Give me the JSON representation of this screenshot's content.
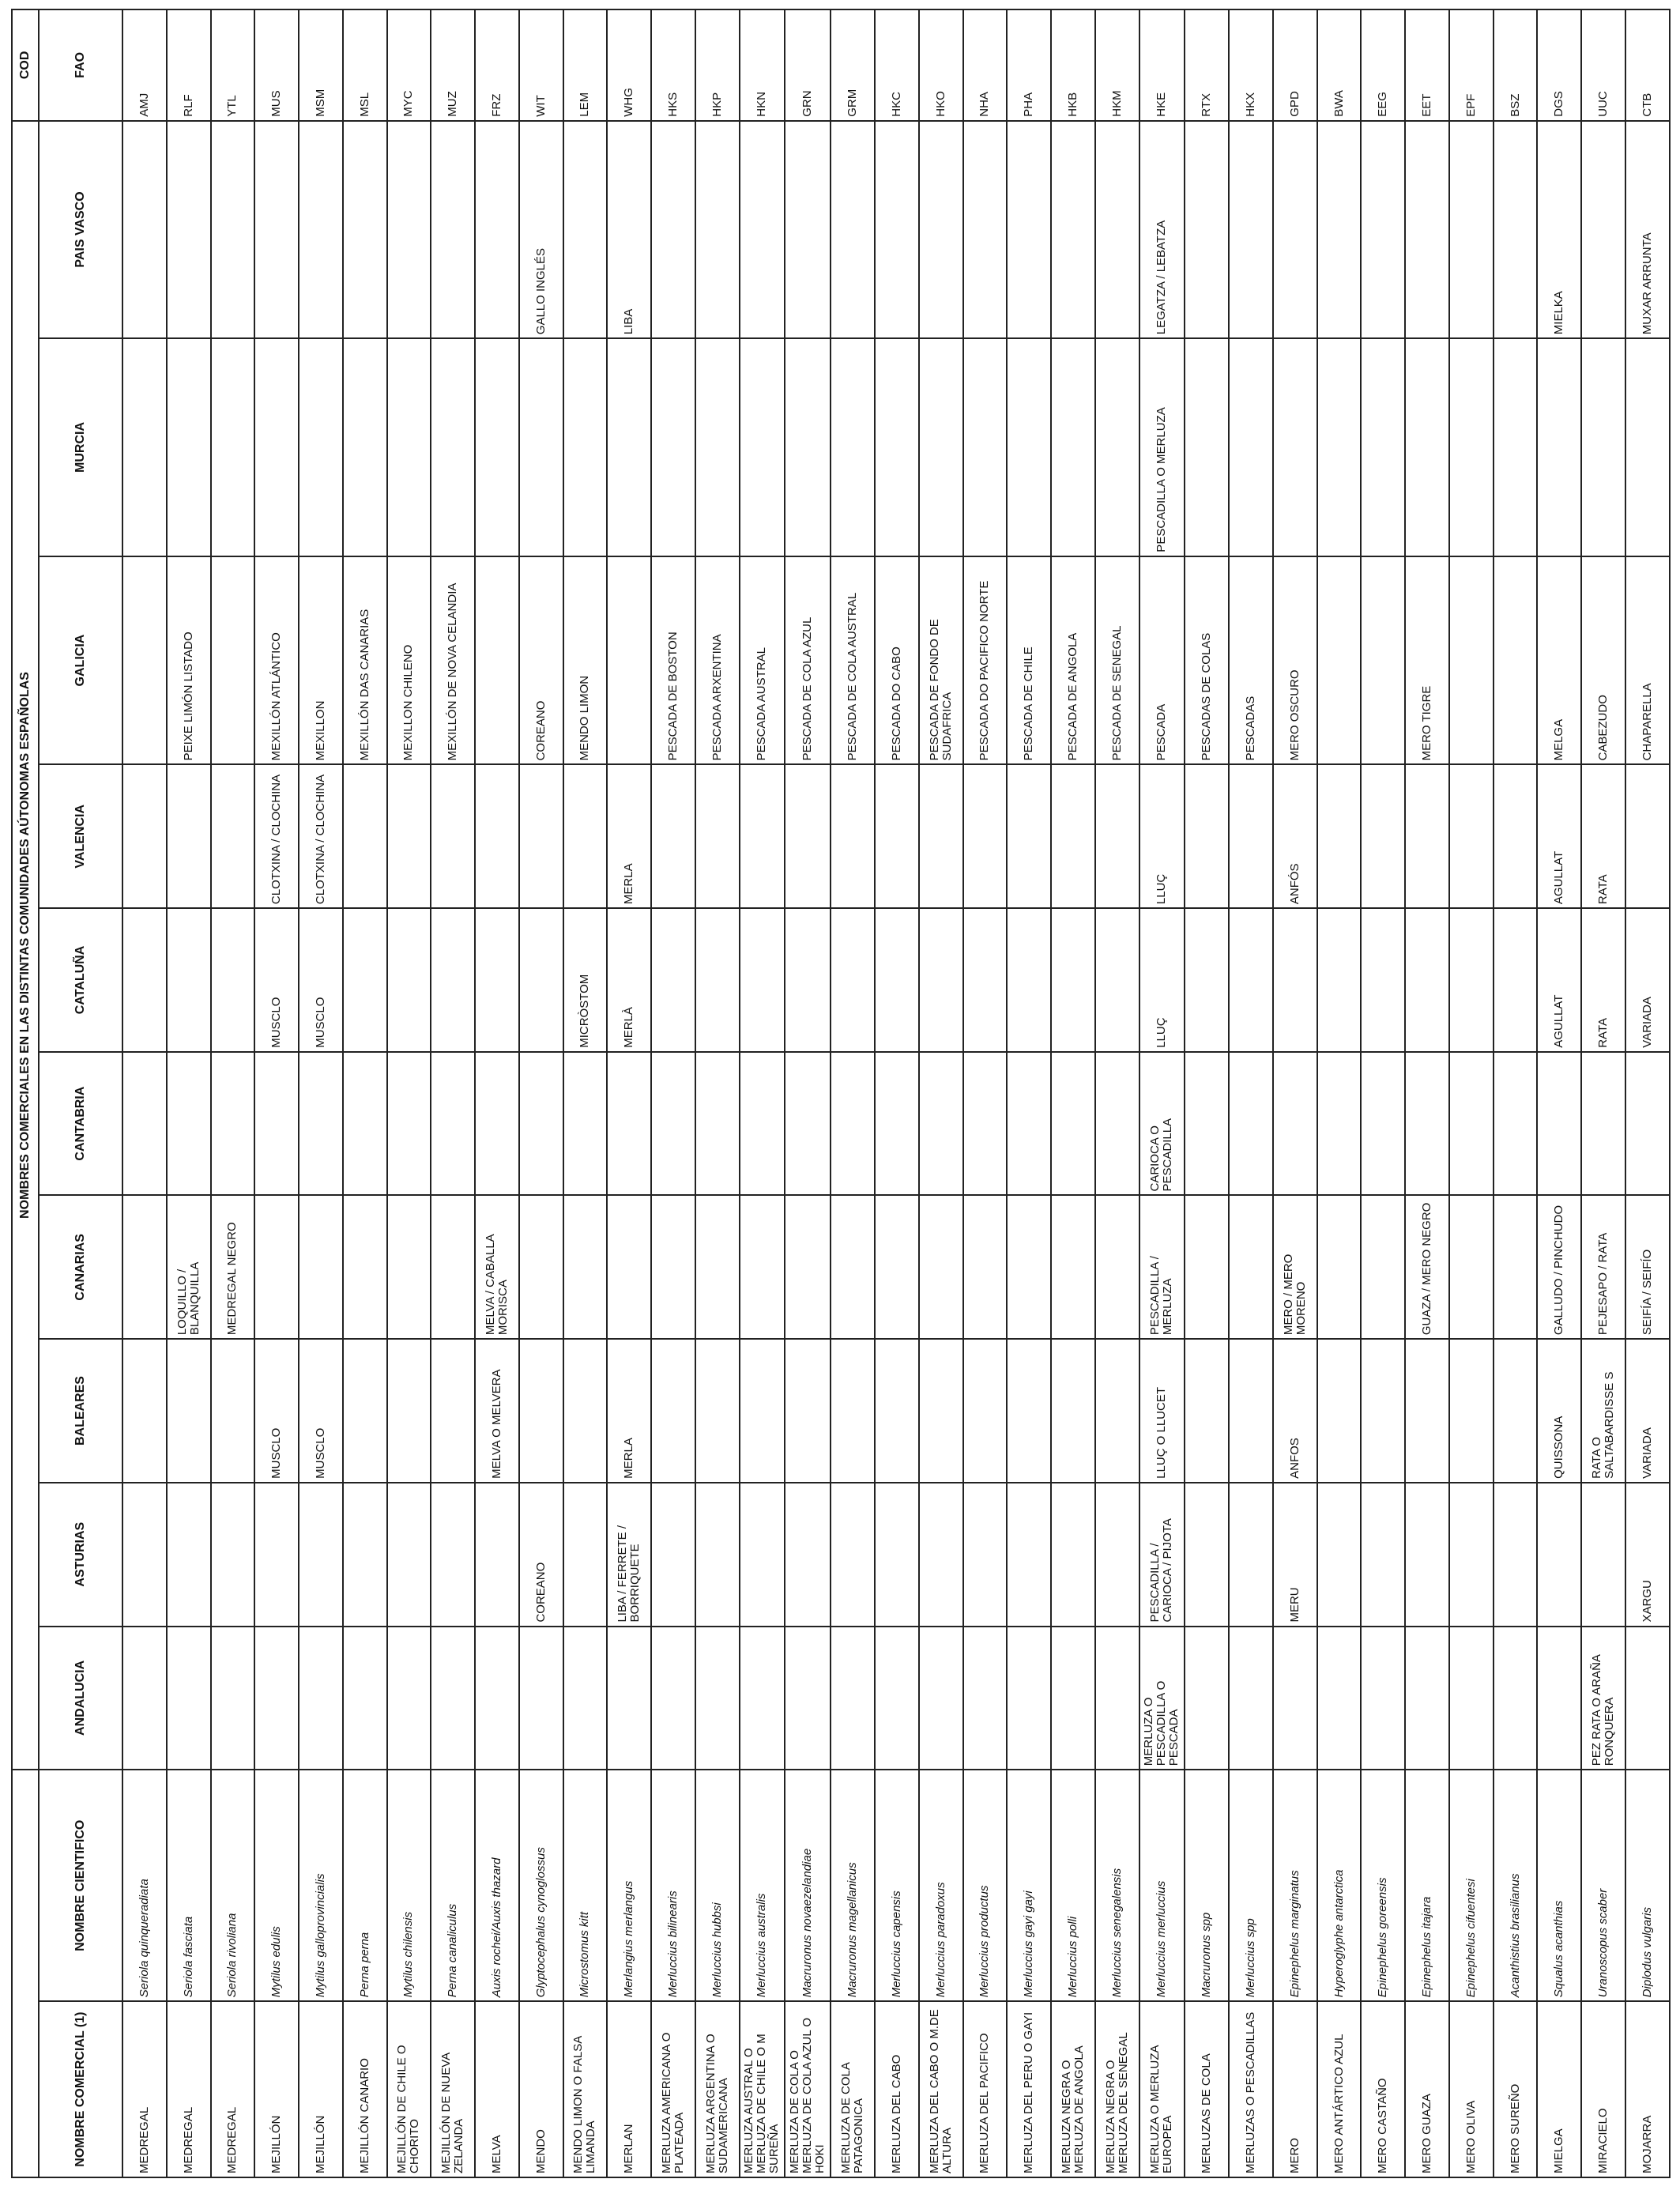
{
  "headers": {
    "cod": "COD",
    "nombres_group": "NOMBRES COMERCIALES EN LAS DISTINTAS COMUNIDADES AÚTONOMAS ESPAÑOLAS",
    "nombre_comercial": "NOMBRE COMERCIAL (1)",
    "nombre_cientifico": "NOMBRE CIENTIFICO",
    "regions": [
      "ANDALUCIA",
      "ASTURIAS",
      "BALEARES",
      "CANARIAS",
      "CANTABRIA",
      "CATALUÑA",
      "VALENCIA",
      "GALICIA",
      "MURCIA",
      "PAIS VASCO"
    ],
    "fao": "FAO"
  },
  "rows": [
    {
      "comercial": "MEDREGAL",
      "cientifico": "Seriola quinqueradiata",
      "regions": [
        "",
        "",
        "",
        "",
        "",
        "",
        "",
        "",
        "",
        ""
      ],
      "fao": "AMJ"
    },
    {
      "comercial": "MEDREGAL",
      "cientifico": "Seriola fasciata",
      "regions": [
        "",
        "",
        "",
        "LOQUILLO / BLANQUILLA",
        "",
        "",
        "",
        "PEIXE LIMÓN LISTADO",
        "",
        ""
      ],
      "fao": "RLF"
    },
    {
      "comercial": "MEDREGAL",
      "cientifico": "Seriola rivoliana",
      "regions": [
        "",
        "",
        "",
        "MEDREGAL NEGRO",
        "",
        "",
        "",
        "",
        "",
        ""
      ],
      "fao": "YTL"
    },
    {
      "comercial": "MEJILLÓN",
      "cientifico": "Mytilus edulis",
      "regions": [
        "",
        "",
        "MUSCLO",
        "",
        "",
        "MUSCLO",
        "CLOTXINA / CLOCHINA",
        "MEXILLÓN ATLÁNTICO",
        "",
        ""
      ],
      "fao": "MUS"
    },
    {
      "comercial": "MEJILLÓN",
      "cientifico": "Mytilus galloprovincialis",
      "regions": [
        "",
        "",
        "MUSCLO",
        "",
        "",
        "MUSCLO",
        "CLOTXINA / CLOCHINA",
        "MEXILLON",
        "",
        ""
      ],
      "fao": "MSM"
    },
    {
      "comercial": "MEJILLÓN CANARIO",
      "cientifico": "Perna perna",
      "regions": [
        "",
        "",
        "",
        "",
        "",
        "",
        "",
        "MEXILLÓN DAS CANARIAS",
        "",
        ""
      ],
      "fao": "MSL"
    },
    {
      "comercial": "MEJILLÓN DE CHILE O CHORITO",
      "cientifico": "Mytilus chilensis",
      "regions": [
        "",
        "",
        "",
        "",
        "",
        "",
        "",
        "MEXILLON CHILENO",
        "",
        ""
      ],
      "fao": "MYC"
    },
    {
      "comercial": "MEJILLÓN DE NUEVA ZELANDA",
      "cientifico": "Perna canaliculus",
      "regions": [
        "",
        "",
        "",
        "",
        "",
        "",
        "",
        "MEXILLÓN DE NOVA CELANDIA",
        "",
        ""
      ],
      "fao": "MUZ"
    },
    {
      "comercial": "MELVA",
      "cientifico": "Auxis rochei/Auxis thazard",
      "regions": [
        "",
        "",
        "MELVA O MELVERA",
        "MELVA / CABALLA MORISCA",
        "",
        "",
        "",
        "",
        "",
        ""
      ],
      "fao": "FRZ"
    },
    {
      "comercial": "MENDO",
      "cientifico": "Glyptocephalus cynoglossus",
      "regions": [
        "",
        "COREANO",
        "",
        "",
        "",
        "",
        "",
        "COREANO",
        "",
        "GALLO INGLÉS"
      ],
      "fao": "WIT"
    },
    {
      "comercial": "MENDO LIMON O FALSA LIMANDA",
      "cientifico": "Microstomus kitt",
      "regions": [
        "",
        "",
        "",
        "",
        "",
        "MICRÒSTOM",
        "",
        "MENDO LIMON",
        "",
        ""
      ],
      "fao": "LEM"
    },
    {
      "comercial": "MERLAN",
      "cientifico": "Merlangius merlangus",
      "regions": [
        "",
        "LIBA / FERRETE / BORRIQUETE",
        "MERLA",
        "",
        "",
        "MERLÀ",
        "MERLA",
        "",
        "",
        "LIBA"
      ],
      "fao": "WHG"
    },
    {
      "comercial": "MERLUZA AMERICANA O PLATEADA",
      "cientifico": "Merluccius bilinearis",
      "regions": [
        "",
        "",
        "",
        "",
        "",
        "",
        "",
        "PESCADA DE BOSTON",
        "",
        ""
      ],
      "fao": "HKS"
    },
    {
      "comercial": "MERLUZA ARGENTINA O SUDAMERICANA",
      "cientifico": "Merluccius hubbsi",
      "regions": [
        "",
        "",
        "",
        "",
        "",
        "",
        "",
        "PESCADA ARXENTINA",
        "",
        ""
      ],
      "fao": "HKP"
    },
    {
      "comercial": "MERLUZA AUSTRAL O MERLUZA DE CHILE O M SUREÑA",
      "cientifico": "Merluccius australis",
      "regions": [
        "",
        "",
        "",
        "",
        "",
        "",
        "",
        "PESCADA AUSTRAL",
        "",
        ""
      ],
      "fao": "HKN"
    },
    {
      "comercial": "MERLUZA DE COLA O MERLUZA DE COLA AZUL O HOKI",
      "cientifico": "Macruronus novaezelandiae",
      "regions": [
        "",
        "",
        "",
        "",
        "",
        "",
        "",
        "PESCADA DE COLA AZUL",
        "",
        ""
      ],
      "fao": "GRN"
    },
    {
      "comercial": "MERLUZA DE COLA PATAGONICA",
      "cientifico": "Macruronus magellanicus",
      "regions": [
        "",
        "",
        "",
        "",
        "",
        "",
        "",
        "PESCADA DE COLA AUSTRAL",
        "",
        ""
      ],
      "fao": "GRM"
    },
    {
      "comercial": "MERLUZA DEL CABO",
      "cientifico": "Merluccius capensis",
      "regions": [
        "",
        "",
        "",
        "",
        "",
        "",
        "",
        "PESCADA DO CABO",
        "",
        ""
      ],
      "fao": "HKC"
    },
    {
      "comercial": "MERLUZA DEL CABO O M.DE ALTURA",
      "cientifico": "Merluccius paradoxus",
      "regions": [
        "",
        "",
        "",
        "",
        "",
        "",
        "",
        "PESCADA DE FONDO DE SUDAFRICA",
        "",
        ""
      ],
      "fao": "HKO"
    },
    {
      "comercial": "MERLUZA DEL PACIFICO",
      "cientifico": "Merluccius productus",
      "regions": [
        "",
        "",
        "",
        "",
        "",
        "",
        "",
        "PESCADA DO PACIFICO NORTE",
        "",
        ""
      ],
      "fao": "NHA"
    },
    {
      "comercial": "MERLUZA DEL PERU O GAYI",
      "cientifico": "Merluccius gayi gayi",
      "regions": [
        "",
        "",
        "",
        "",
        "",
        "",
        "",
        "PESCADA DE CHILE",
        "",
        ""
      ],
      "fao": "PHA"
    },
    {
      "comercial": "MERLUZA NEGRA O MERLUZA DE ANGOLA",
      "cientifico": "Merluccius polli",
      "regions": [
        "",
        "",
        "",
        "",
        "",
        "",
        "",
        "PESCADA DE ANGOLA",
        "",
        ""
      ],
      "fao": "HKB"
    },
    {
      "comercial": "MERLUZA NEGRA O MERLUZA DEL SENEGAL",
      "cientifico": "Merluccius senegalensis",
      "regions": [
        "",
        "",
        "",
        "",
        "",
        "",
        "",
        "PESCADA DE SENEGAL",
        "",
        ""
      ],
      "fao": "HKM"
    },
    {
      "comercial": "MERLUZA O MERLUZA EUROPEA",
      "cientifico": "Merluccius merluccius",
      "regions": [
        "MERLUZA O PESCADILLA O PESCADA",
        "PESCADILLA / CARIOCA / PIJOTA",
        "LLUÇ O LLUCET",
        "PESCADILLA / MERLUZA",
        "CARIOCA O PESCADILLA",
        "LLUÇ",
        "LLUÇ",
        "PESCADA",
        "PESCADILLA O MERLUZA",
        "LEGATZA / LEBATZA"
      ],
      "fao": "HKE"
    },
    {
      "comercial": "MERLUZAS DE COLA",
      "cientifico": "Macruronus  spp",
      "regions": [
        "",
        "",
        "",
        "",
        "",
        "",
        "",
        "PESCADAS DE COLAS",
        "",
        ""
      ],
      "fao": "RTX"
    },
    {
      "comercial": "MERLUZAS O PESCADILLAS",
      "cientifico": "Merluccius  spp",
      "regions": [
        "",
        "",
        "",
        "",
        "",
        "",
        "",
        "PESCADAS",
        "",
        ""
      ],
      "fao": "HKX"
    },
    {
      "comercial": "MERO",
      "cientifico": "Epinephelus marginatus",
      "regions": [
        "",
        "MERU",
        "ANFOS",
        "MERO / MERO MORENO",
        "",
        "",
        "ANFÓS",
        "MERO OSCURO",
        "",
        ""
      ],
      "fao": "GPD"
    },
    {
      "comercial": "MERO ANTÁRTICO AZUL",
      "cientifico": "Hyperoglyphe antarctica",
      "regions": [
        "",
        "",
        "",
        "",
        "",
        "",
        "",
        "",
        "",
        ""
      ],
      "fao": "BWA"
    },
    {
      "comercial": "MERO CASTAÑO",
      "cientifico": "Epinephelus goreensis",
      "regions": [
        "",
        "",
        "",
        "",
        "",
        "",
        "",
        "",
        "",
        ""
      ],
      "fao": "EEG"
    },
    {
      "comercial": "MERO GUAZA",
      "cientifico": "Epinephelus itajara",
      "regions": [
        "",
        "",
        "",
        "GUAZA / MERO NEGRO",
        "",
        "",
        "",
        "MERO TIGRE",
        "",
        ""
      ],
      "fao": "EET"
    },
    {
      "comercial": "MERO OLIVA",
      "cientifico": "Epinephelus cifuentesi",
      "regions": [
        "",
        "",
        "",
        "",
        "",
        "",
        "",
        "",
        "",
        ""
      ],
      "fao": "EPF"
    },
    {
      "comercial": "MERO SUREÑO",
      "cientifico": "Acanthistius brasilianus",
      "regions": [
        "",
        "",
        "",
        "",
        "",
        "",
        "",
        "",
        "",
        ""
      ],
      "fao": "BSZ"
    },
    {
      "comercial": "MIELGA",
      "cientifico": "Squalus acanthias",
      "regions": [
        "",
        "",
        "QUISSONA",
        "GALLUDO / PINCHUDO",
        "",
        "AGULLAT",
        "AGULLAT",
        "MELGA",
        "",
        "MIELKA"
      ],
      "fao": "DGS"
    },
    {
      "comercial": "MIRACIELO",
      "cientifico": "Uranoscopus scaber",
      "regions": [
        "PEZ RATA O ARAÑA RONQUERA",
        "",
        "RATA O SALTABARDISSE S",
        "PEJESAPO / RATA",
        "",
        "RATA",
        "RATA",
        "CABEZUDO",
        "",
        ""
      ],
      "fao": "UUC"
    },
    {
      "comercial": "MOJARRA",
      "cientifico": "Diplodus vulgaris",
      "regions": [
        "",
        "XARGU",
        "VARIADA",
        "SEIFÍA / SEIFÍO",
        "",
        "VARIADA",
        "",
        "CHAPARELLA",
        "",
        "MUXAR ARRUNTA"
      ],
      "fao": "CTB"
    }
  ]
}
